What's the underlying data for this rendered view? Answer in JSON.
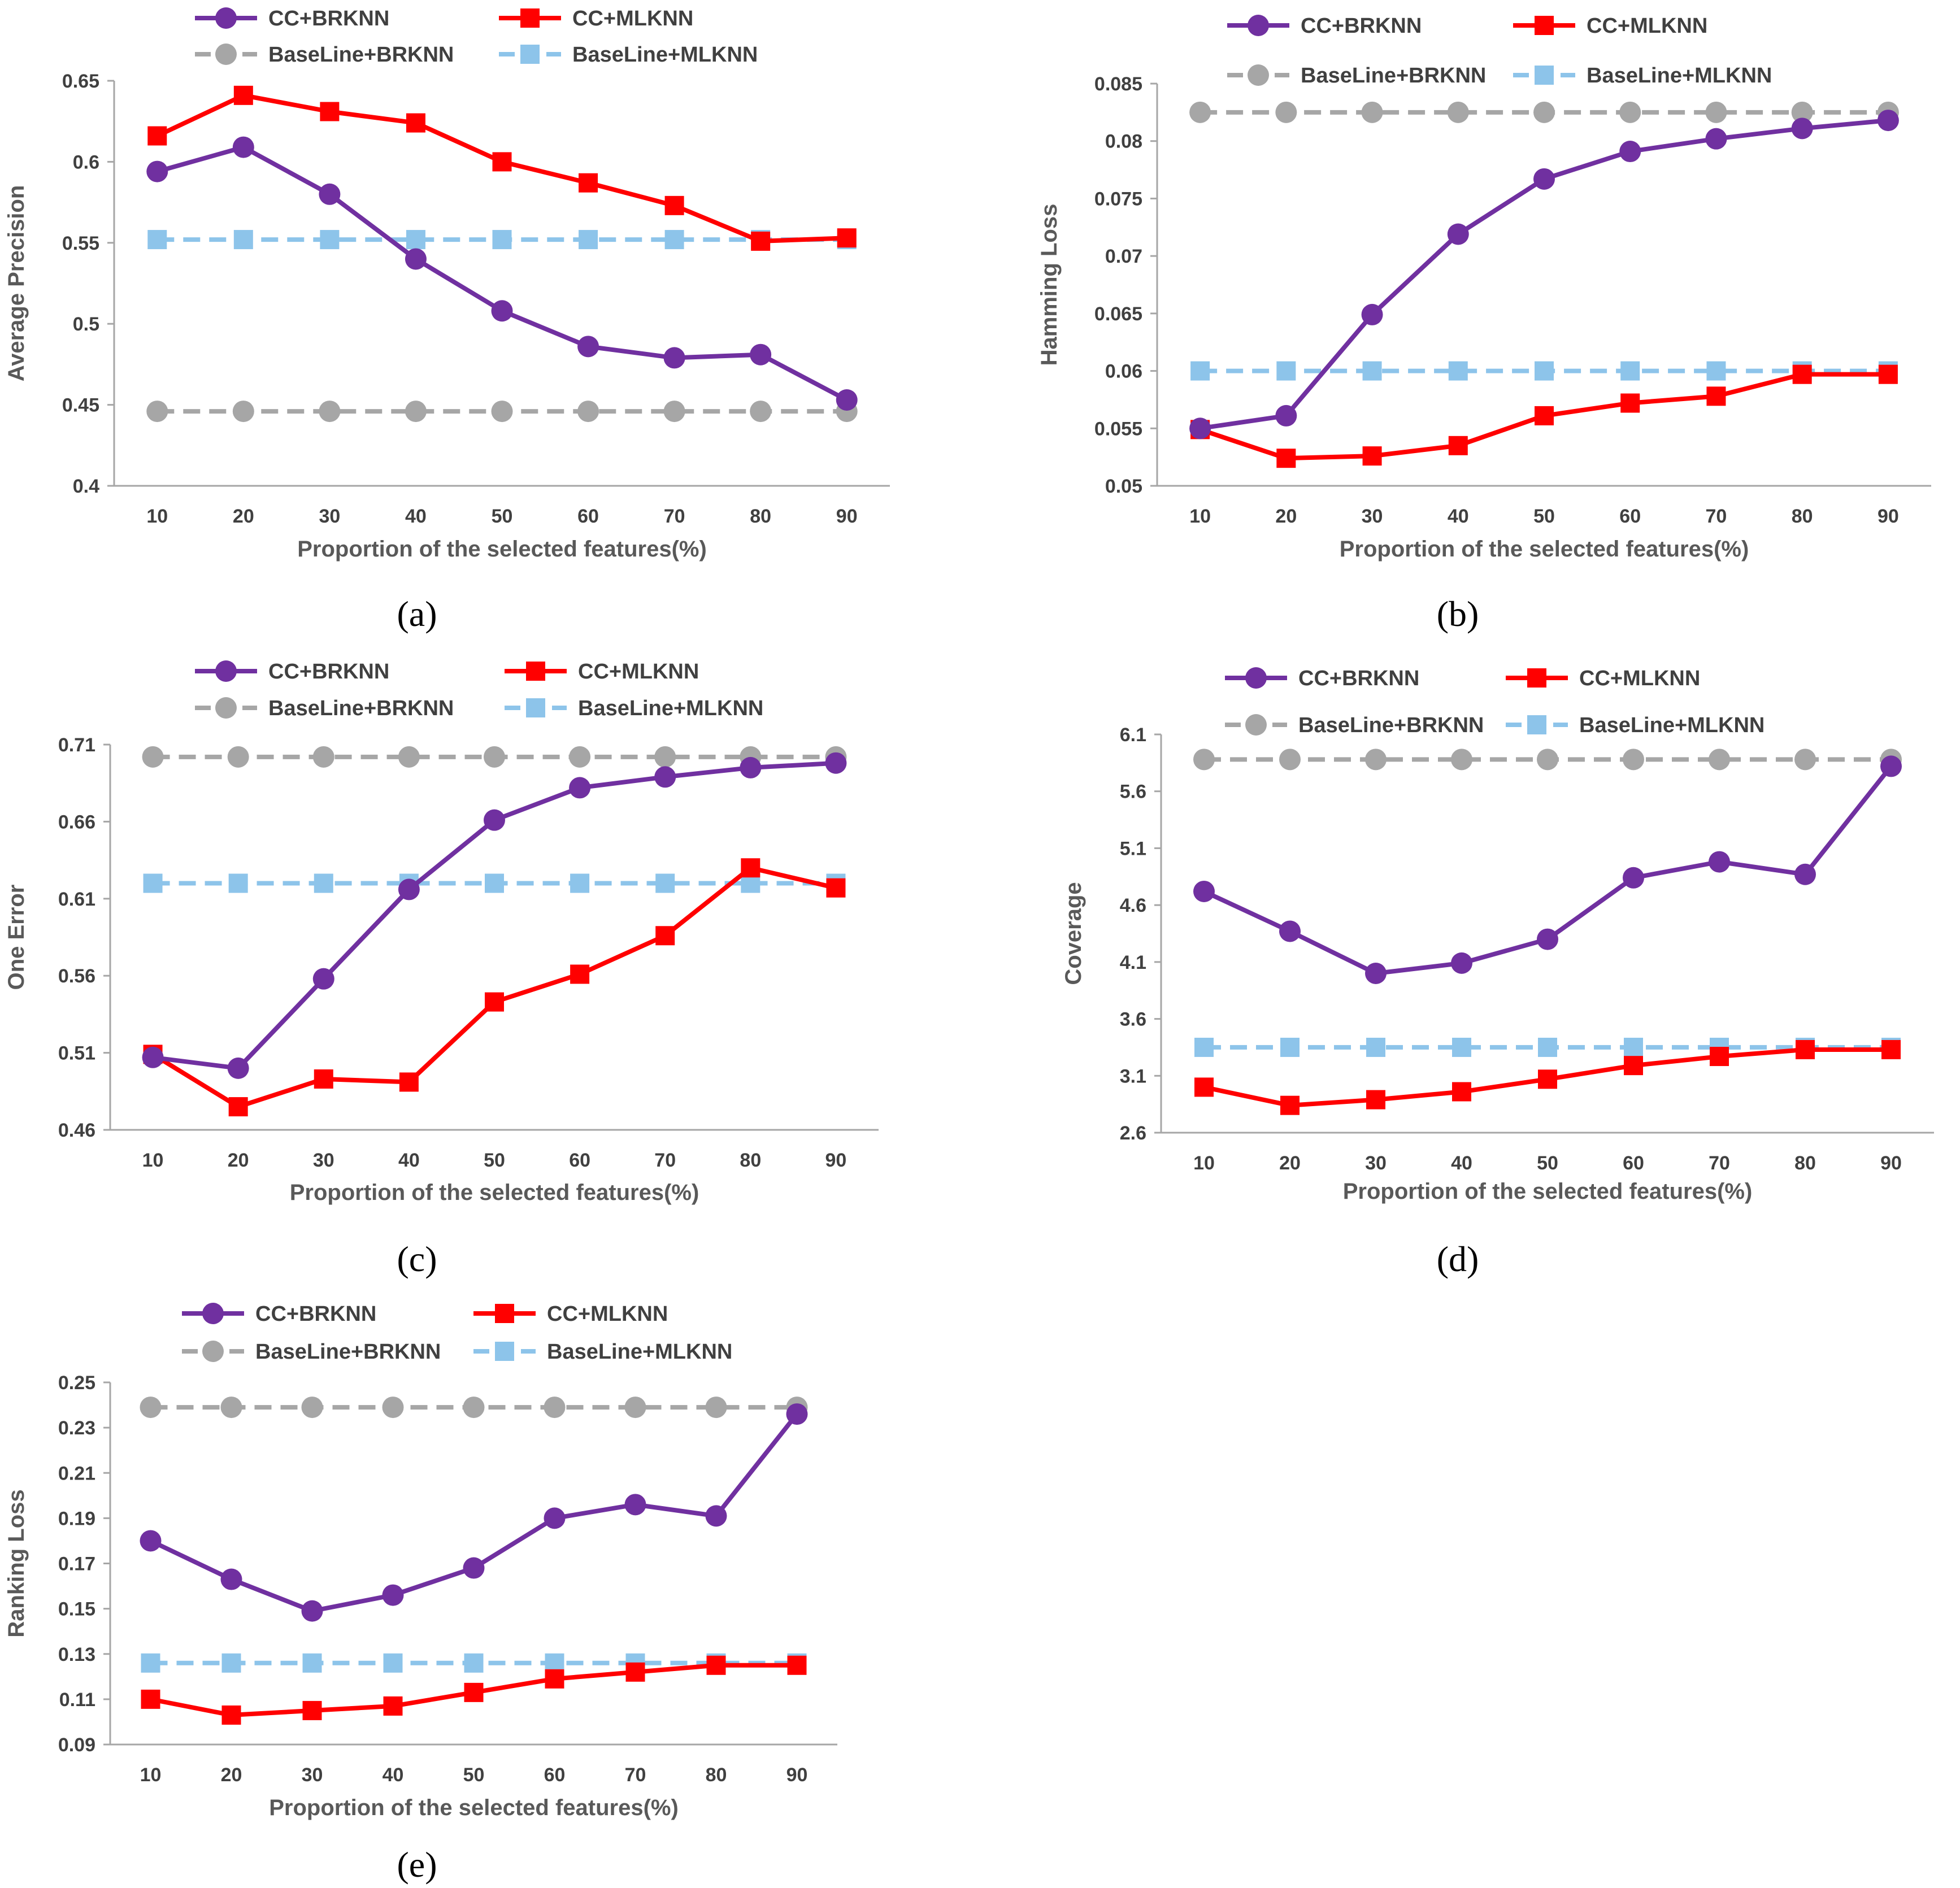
{
  "chart_data": [
    {
      "type": "line",
      "panel": "a",
      "caption": "(a)",
      "xlabel": "Proportion of the selected features(%)",
      "ylabel": "Average Precision",
      "categories": [
        "10",
        "20",
        "30",
        "40",
        "50",
        "60",
        "70",
        "80",
        "90"
      ],
      "ylim": [
        0.4,
        0.65
      ],
      "yticks": [
        0.4,
        0.45,
        0.5,
        0.55,
        0.6,
        0.65
      ],
      "ytick_labels": [
        "0.4",
        "0.45",
        "0.5",
        "0.55",
        "0.6",
        "0.65"
      ],
      "series": [
        {
          "name": "CC+BRKNN",
          "values": [
            0.594,
            0.609,
            0.58,
            0.54,
            0.508,
            0.486,
            0.479,
            0.481,
            0.453
          ]
        },
        {
          "name": "CC+MLKNN",
          "values": [
            0.616,
            0.641,
            0.631,
            0.624,
            0.6,
            0.587,
            0.573,
            0.551,
            0.553
          ]
        },
        {
          "name": "BaseLine+BRKNN",
          "values": [
            0.446,
            0.446,
            0.446,
            0.446,
            0.446,
            0.446,
            0.446,
            0.446,
            0.446
          ]
        },
        {
          "name": "BaseLine+MLKNN",
          "values": [
            0.552,
            0.552,
            0.552,
            0.552,
            0.552,
            0.552,
            0.552,
            0.552,
            0.552
          ]
        }
      ]
    },
    {
      "type": "line",
      "panel": "b",
      "caption": "(b)",
      "xlabel": "Proportion of the selected features(%)",
      "ylabel": "Hamming Loss",
      "categories": [
        "10",
        "20",
        "30",
        "40",
        "50",
        "60",
        "70",
        "80",
        "90"
      ],
      "ylim": [
        0.05,
        0.085
      ],
      "yticks": [
        0.05,
        0.055,
        0.06,
        0.065,
        0.07,
        0.075,
        0.08,
        0.085
      ],
      "ytick_labels": [
        "0.05",
        "0.055",
        "0.06",
        "0.065",
        "0.07",
        "0.075",
        "0.08",
        "0.085"
      ],
      "series": [
        {
          "name": "CC+BRKNN",
          "values": [
            0.055,
            0.0561,
            0.0649,
            0.0719,
            0.0767,
            0.0791,
            0.0802,
            0.0811,
            0.0818
          ]
        },
        {
          "name": "CC+MLKNN",
          "values": [
            0.0549,
            0.0524,
            0.0526,
            0.0535,
            0.0561,
            0.0572,
            0.0578,
            0.0597,
            0.0597
          ]
        },
        {
          "name": "BaseLine+BRKNN",
          "values": [
            0.0825,
            0.0825,
            0.0825,
            0.0825,
            0.0825,
            0.0825,
            0.0825,
            0.0825,
            0.0825
          ]
        },
        {
          "name": "BaseLine+MLKNN",
          "values": [
            0.06,
            0.06,
            0.06,
            0.06,
            0.06,
            0.06,
            0.06,
            0.06,
            0.06
          ]
        }
      ]
    },
    {
      "type": "line",
      "panel": "c",
      "caption": "(c)",
      "xlabel": "Proportion of the selected features(%)",
      "ylabel": "One Error",
      "categories": [
        "10",
        "20",
        "30",
        "40",
        "50",
        "60",
        "70",
        "80",
        "90"
      ],
      "ylim": [
        0.46,
        0.71
      ],
      "yticks": [
        0.46,
        0.51,
        0.56,
        0.61,
        0.66,
        0.71
      ],
      "ytick_labels": [
        "0.46",
        "0.51",
        "0.56",
        "0.61",
        "0.66",
        "0.71"
      ],
      "series": [
        {
          "name": "CC+BRKNN",
          "values": [
            0.507,
            0.5,
            0.558,
            0.616,
            0.661,
            0.682,
            0.689,
            0.695,
            0.698
          ]
        },
        {
          "name": "CC+MLKNN",
          "values": [
            0.509,
            0.475,
            0.493,
            0.491,
            0.543,
            0.561,
            0.586,
            0.63,
            0.617
          ]
        },
        {
          "name": "BaseLine+BRKNN",
          "values": [
            0.702,
            0.702,
            0.702,
            0.702,
            0.702,
            0.702,
            0.702,
            0.702,
            0.702
          ]
        },
        {
          "name": "BaseLine+MLKNN",
          "values": [
            0.62,
            0.62,
            0.62,
            0.62,
            0.62,
            0.62,
            0.62,
            0.62,
            0.62
          ]
        }
      ]
    },
    {
      "type": "line",
      "panel": "d",
      "caption": "(d)",
      "xlabel": "Proportion of the selected features(%)",
      "ylabel": "Coverage",
      "categories": [
        "10",
        "20",
        "30",
        "40",
        "50",
        "60",
        "70",
        "80",
        "90"
      ],
      "ylim": [
        2.6,
        6.1
      ],
      "yticks": [
        2.6,
        3.1,
        3.6,
        4.1,
        4.6,
        5.1,
        5.6,
        6.1
      ],
      "ytick_labels": [
        "2.6",
        "3.1",
        "3.6",
        "4.1",
        "4.6",
        "5.1",
        "5.6",
        "6.1"
      ],
      "series": [
        {
          "name": "CC+BRKNN",
          "values": [
            4.72,
            4.37,
            4.0,
            4.09,
            4.3,
            4.84,
            4.98,
            4.87,
            5.82
          ]
        },
        {
          "name": "CC+MLKNN",
          "values": [
            3.0,
            2.84,
            2.89,
            2.96,
            3.07,
            3.19,
            3.27,
            3.33,
            3.33
          ]
        },
        {
          "name": "BaseLine+BRKNN",
          "values": [
            5.88,
            5.88,
            5.88,
            5.88,
            5.88,
            5.88,
            5.88,
            5.88,
            5.88
          ]
        },
        {
          "name": "BaseLine+MLKNN",
          "values": [
            3.35,
            3.35,
            3.35,
            3.35,
            3.35,
            3.35,
            3.35,
            3.35,
            3.35
          ]
        }
      ]
    },
    {
      "type": "line",
      "panel": "e",
      "caption": "(e)",
      "xlabel": "Proportion of the selected features(%)",
      "ylabel": "Ranking Loss",
      "categories": [
        "10",
        "20",
        "30",
        "40",
        "50",
        "60",
        "70",
        "80",
        "90"
      ],
      "ylim": [
        0.09,
        0.25
      ],
      "yticks": [
        0.09,
        0.11,
        0.13,
        0.15,
        0.17,
        0.19,
        0.21,
        0.23,
        0.25
      ],
      "ytick_labels": [
        "0.09",
        "0.11",
        "0.13",
        "0.15",
        "0.17",
        "0.19",
        "0.21",
        "0.23",
        "0.25"
      ],
      "series": [
        {
          "name": "CC+BRKNN",
          "values": [
            0.18,
            0.163,
            0.149,
            0.156,
            0.168,
            0.19,
            0.196,
            0.191,
            0.236
          ]
        },
        {
          "name": "CC+MLKNN",
          "values": [
            0.11,
            0.103,
            0.105,
            0.107,
            0.113,
            0.119,
            0.122,
            0.125,
            0.125
          ]
        },
        {
          "name": "BaseLine+BRKNN",
          "values": [
            0.239,
            0.239,
            0.239,
            0.239,
            0.239,
            0.239,
            0.239,
            0.239,
            0.239
          ]
        },
        {
          "name": "BaseLine+MLKNN",
          "values": [
            0.126,
            0.126,
            0.126,
            0.126,
            0.126,
            0.126,
            0.126,
            0.126,
            0.126
          ]
        }
      ]
    }
  ],
  "series_style": {
    "CC+BRKNN": {
      "color": "#7030A0",
      "marker": "circle",
      "dashed": false
    },
    "CC+MLKNN": {
      "color": "#FF0000",
      "marker": "square",
      "dashed": false
    },
    "BaseLine+BRKNN": {
      "color": "#A6A6A6",
      "marker": "circle",
      "dashed": true
    },
    "BaseLine+MLKNN": {
      "color": "#8DC4EA",
      "marker": "square",
      "dashed": true
    }
  }
}
